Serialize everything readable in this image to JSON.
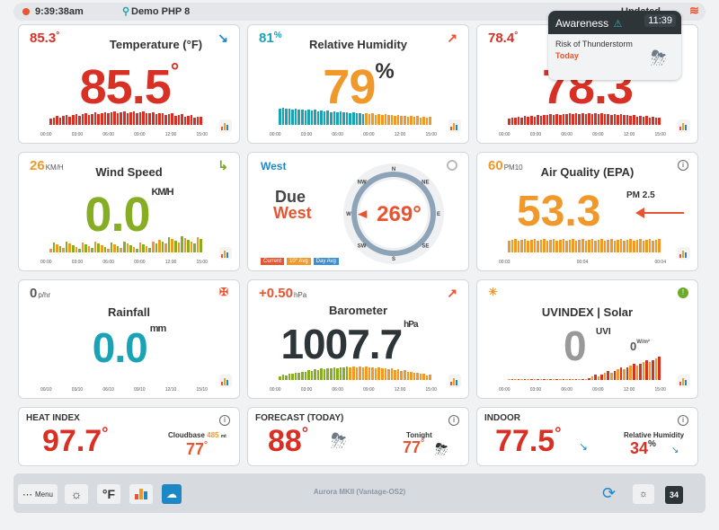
{
  "topbar": {
    "time": "9:39:38am",
    "station": "Demo PHP 8",
    "updated": "Updated",
    "wifi_icon": "wifi-icon"
  },
  "popup": {
    "title": "Awareness",
    "time": "11:39",
    "alert": "Risk of Thunderstorm",
    "when": "Today"
  },
  "temperature": {
    "title": "Temperature (°F)",
    "corner": "85.3",
    "corner_unit": "°",
    "value": "85.5",
    "unit": "°",
    "ticks": [
      "00:00",
      "03:00",
      "06:00",
      "09:00",
      "12:00",
      "15:00"
    ]
  },
  "humidity": {
    "title": "Relative Humidity",
    "corner": "81",
    "corner_unit": "%",
    "value": "79",
    "unit": "%",
    "ticks": [
      "00:00",
      "03:00",
      "06:00",
      "09:00",
      "12:00",
      "15:00"
    ]
  },
  "dewpoint": {
    "corner": "78.4",
    "corner_unit": "°",
    "value": "78.3",
    "ticks": [
      "00:00",
      "03:00",
      "06:00",
      "09:00",
      "12:00",
      "15:00"
    ]
  },
  "wind": {
    "title": "Wind Speed",
    "corner": "26",
    "corner_unit": "KM/H",
    "value": "0.0",
    "unit": "KM/H",
    "ticks": [
      "00:00",
      "03:00",
      "06:00",
      "09:00",
      "12:00",
      "15:00"
    ]
  },
  "compass": {
    "label": "West",
    "due": "Due",
    "direction": "West",
    "degrees": "269°",
    "cardinals": [
      "N",
      "NE",
      "E",
      "SE",
      "S",
      "SW",
      "W",
      "NW"
    ],
    "legend": [
      "Current",
      "10° Avg",
      "Day Avg"
    ],
    "current_bearing": 269
  },
  "airquality": {
    "title": "Air Quality (EPA)",
    "corner": "60",
    "corner_unit": "PM10",
    "value": "53.3",
    "unit": "PM 2.5",
    "ticks": [
      "00:03",
      "00:04",
      "00:04"
    ]
  },
  "rainfall": {
    "title": "Rainfall",
    "corner": "0",
    "corner_unit": "p/hr",
    "value": "0.0",
    "unit": "mm",
    "ticks": [
      "00/10",
      "03/10",
      "06/10",
      "09/10",
      "12/10",
      "15/10"
    ]
  },
  "barometer": {
    "title": "Barometer",
    "corner": "+0.50",
    "corner_unit": "hPa",
    "value": "1007.7",
    "unit": "hPa",
    "ticks": [
      "00:00",
      "03:00",
      "06:00",
      "09:00",
      "12:00",
      "15:00"
    ]
  },
  "uv": {
    "title": "UVINDEX | Solar",
    "value": "0",
    "unit": "UVI",
    "solar": "0",
    "solar_unit": "W/m²",
    "ticks": [
      "00:00",
      "03:00",
      "06:00",
      "09:00",
      "12:00",
      "15:00"
    ]
  },
  "heatindex": {
    "title": "HEAT INDEX",
    "value": "97.7",
    "unit": "°",
    "cloudbase_label": "Cloudbase",
    "cloudbase_value": "485",
    "cloudbase_unit": "mt",
    "feels": "77",
    "feels_unit": "°"
  },
  "forecast": {
    "title": "FORECAST (TODAY)",
    "value": "88",
    "unit": "°",
    "tonight": "Tonight",
    "tonight_value": "77",
    "tonight_unit": "°"
  },
  "indoor": {
    "title": "INDOOR",
    "value": "77.5",
    "unit": "°",
    "rh_label": "Relative Humidity",
    "rh_value": "34",
    "rh_unit": "%"
  },
  "bottombar": {
    "menu": "Menu",
    "units": "°F",
    "calendar_day": "34",
    "station_name": "Aurora MKII (Vantage-OS2)"
  }
}
